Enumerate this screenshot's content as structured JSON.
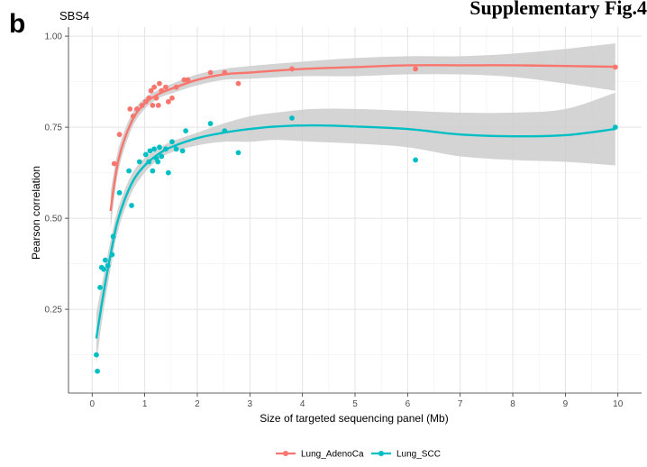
{
  "panel_letter": "b",
  "figure_label": "Supplementary Fig.4",
  "chart_data": {
    "type": "scatter",
    "title": "SBS4",
    "xlabel": "Size of targeted sequencing panel (Mb)",
    "ylabel": "Pearson correlation",
    "xlim": [
      -0.45,
      10.45
    ],
    "ylim": [
      0.02,
      1.025
    ],
    "x_ticks": [
      0,
      1,
      2,
      3,
      4,
      5,
      6,
      7,
      8,
      9,
      10
    ],
    "x_tick_labels": [
      "0",
      "1",
      "2",
      "3",
      "4",
      "5",
      "6",
      "7",
      "8",
      "9",
      "10"
    ],
    "y_ticks": [
      0.25,
      0.5,
      0.75,
      1.0
    ],
    "y_tick_labels": [
      "0.25",
      "0.50",
      "0.75",
      "1.00"
    ],
    "grid": true,
    "legend_position": "bottom",
    "smooth_band_color": "#cccccc",
    "series": [
      {
        "name": "Lung_AdenoCa",
        "color": "#F8766D",
        "points": [
          [
            0.42,
            0.65
          ],
          [
            0.52,
            0.73
          ],
          [
            0.72,
            0.8
          ],
          [
            0.78,
            0.78
          ],
          [
            0.85,
            0.8
          ],
          [
            0.95,
            0.81
          ],
          [
            1.02,
            0.82
          ],
          [
            1.08,
            0.83
          ],
          [
            1.12,
            0.85
          ],
          [
            1.15,
            0.81
          ],
          [
            1.18,
            0.86
          ],
          [
            1.22,
            0.83
          ],
          [
            1.26,
            0.81
          ],
          [
            1.28,
            0.87
          ],
          [
            1.32,
            0.85
          ],
          [
            1.4,
            0.86
          ],
          [
            1.45,
            0.82
          ],
          [
            1.52,
            0.83
          ],
          [
            1.6,
            0.86
          ],
          [
            1.75,
            0.88
          ],
          [
            1.82,
            0.88
          ],
          [
            2.25,
            0.9
          ],
          [
            2.52,
            0.9
          ],
          [
            2.78,
            0.87
          ],
          [
            3.8,
            0.91
          ],
          [
            6.15,
            0.91
          ],
          [
            9.95,
            0.915
          ]
        ],
        "fit": [
          [
            0.35,
            0.52
          ],
          [
            0.5,
            0.66
          ],
          [
            0.75,
            0.765
          ],
          [
            1.0,
            0.815
          ],
          [
            1.25,
            0.84
          ],
          [
            1.5,
            0.855
          ],
          [
            2.0,
            0.88
          ],
          [
            2.5,
            0.895
          ],
          [
            3.0,
            0.9
          ],
          [
            4.0,
            0.91
          ],
          [
            5.0,
            0.915
          ],
          [
            6.0,
            0.92
          ],
          [
            7.0,
            0.92
          ],
          [
            8.0,
            0.92
          ],
          [
            9.0,
            0.918
          ],
          [
            9.95,
            0.916
          ]
        ],
        "fit_upper": [
          [
            0.35,
            0.57
          ],
          [
            0.5,
            0.69
          ],
          [
            0.75,
            0.785
          ],
          [
            1.0,
            0.83
          ],
          [
            1.25,
            0.852
          ],
          [
            1.5,
            0.868
          ],
          [
            2.0,
            0.895
          ],
          [
            2.5,
            0.91
          ],
          [
            3.0,
            0.918
          ],
          [
            4.0,
            0.93
          ],
          [
            5.0,
            0.94
          ],
          [
            6.0,
            0.945
          ],
          [
            7.0,
            0.945
          ],
          [
            8.0,
            0.952
          ],
          [
            9.0,
            0.965
          ],
          [
            9.95,
            0.98
          ]
        ],
        "fit_lower": [
          [
            0.35,
            0.47
          ],
          [
            0.5,
            0.63
          ],
          [
            0.75,
            0.745
          ],
          [
            1.0,
            0.8
          ],
          [
            1.25,
            0.828
          ],
          [
            1.5,
            0.842
          ],
          [
            2.0,
            0.865
          ],
          [
            2.5,
            0.88
          ],
          [
            3.0,
            0.883
          ],
          [
            4.0,
            0.89
          ],
          [
            5.0,
            0.89
          ],
          [
            6.0,
            0.895
          ],
          [
            7.0,
            0.895
          ],
          [
            8.0,
            0.888
          ],
          [
            9.0,
            0.87
          ],
          [
            9.95,
            0.85
          ]
        ]
      },
      {
        "name": "Lung_SCC",
        "color": "#00BFC4",
        "points": [
          [
            0.08,
            0.125
          ],
          [
            0.1,
            0.08
          ],
          [
            0.15,
            0.31
          ],
          [
            0.18,
            0.365
          ],
          [
            0.22,
            0.36
          ],
          [
            0.25,
            0.385
          ],
          [
            0.3,
            0.37
          ],
          [
            0.38,
            0.4
          ],
          [
            0.4,
            0.45
          ],
          [
            0.52,
            0.57
          ],
          [
            0.7,
            0.63
          ],
          [
            0.75,
            0.535
          ],
          [
            0.9,
            0.655
          ],
          [
            1.02,
            0.675
          ],
          [
            1.08,
            0.655
          ],
          [
            1.1,
            0.685
          ],
          [
            1.15,
            0.63
          ],
          [
            1.18,
            0.69
          ],
          [
            1.22,
            0.665
          ],
          [
            1.25,
            0.655
          ],
          [
            1.28,
            0.695
          ],
          [
            1.32,
            0.67
          ],
          [
            1.4,
            0.69
          ],
          [
            1.45,
            0.625
          ],
          [
            1.52,
            0.71
          ],
          [
            1.6,
            0.69
          ],
          [
            1.72,
            0.685
          ],
          [
            1.78,
            0.74
          ],
          [
            2.25,
            0.76
          ],
          [
            2.52,
            0.74
          ],
          [
            2.78,
            0.68
          ],
          [
            3.8,
            0.775
          ],
          [
            6.15,
            0.66
          ],
          [
            9.95,
            0.75
          ]
        ],
        "fit": [
          [
            0.08,
            0.17
          ],
          [
            0.2,
            0.28
          ],
          [
            0.35,
            0.4
          ],
          [
            0.5,
            0.5
          ],
          [
            0.75,
            0.595
          ],
          [
            1.0,
            0.645
          ],
          [
            1.25,
            0.675
          ],
          [
            1.5,
            0.695
          ],
          [
            2.0,
            0.72
          ],
          [
            2.5,
            0.735
          ],
          [
            3.0,
            0.745
          ],
          [
            3.5,
            0.752
          ],
          [
            4.2,
            0.755
          ],
          [
            5.0,
            0.752
          ],
          [
            6.0,
            0.745
          ],
          [
            7.0,
            0.73
          ],
          [
            8.0,
            0.725
          ],
          [
            9.0,
            0.728
          ],
          [
            9.95,
            0.745
          ]
        ],
        "fit_upper": [
          [
            0.08,
            0.24
          ],
          [
            0.2,
            0.33
          ],
          [
            0.35,
            0.44
          ],
          [
            0.5,
            0.53
          ],
          [
            0.75,
            0.62
          ],
          [
            1.0,
            0.665
          ],
          [
            1.25,
            0.69
          ],
          [
            1.5,
            0.71
          ],
          [
            2.0,
            0.735
          ],
          [
            2.5,
            0.76
          ],
          [
            3.0,
            0.78
          ],
          [
            3.5,
            0.79
          ],
          [
            4.2,
            0.8
          ],
          [
            5.0,
            0.8
          ],
          [
            6.0,
            0.795
          ],
          [
            7.0,
            0.79
          ],
          [
            8.0,
            0.79
          ],
          [
            9.0,
            0.8
          ],
          [
            9.95,
            0.845
          ]
        ],
        "fit_lower": [
          [
            0.08,
            0.1
          ],
          [
            0.2,
            0.23
          ],
          [
            0.35,
            0.36
          ],
          [
            0.5,
            0.47
          ],
          [
            0.75,
            0.57
          ],
          [
            1.0,
            0.625
          ],
          [
            1.25,
            0.66
          ],
          [
            1.5,
            0.68
          ],
          [
            2.0,
            0.7
          ],
          [
            2.5,
            0.71
          ],
          [
            3.0,
            0.71
          ],
          [
            3.5,
            0.715
          ],
          [
            4.2,
            0.71
          ],
          [
            5.0,
            0.705
          ],
          [
            6.0,
            0.695
          ],
          [
            7.0,
            0.67
          ],
          [
            8.0,
            0.66
          ],
          [
            9.0,
            0.655
          ],
          [
            9.95,
            0.645
          ]
        ]
      }
    ]
  }
}
